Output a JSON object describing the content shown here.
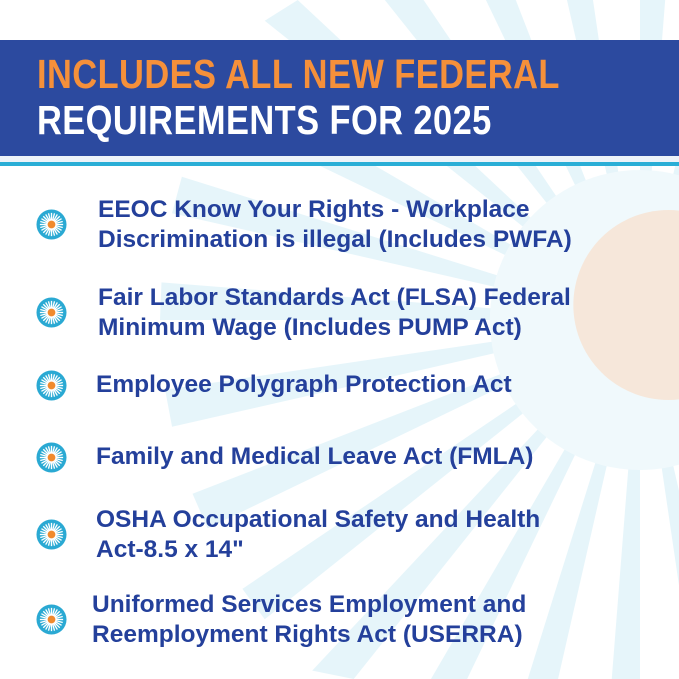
{
  "header": {
    "line1": "INCLUDES ALL NEW FEDERAL",
    "line2": "REQUIREMENTS FOR 2025"
  },
  "items": [
    {
      "line1": "EEOC Know Your Rights -  Workplace",
      "line2": "Discrimination is illegal (Includes PWFA)"
    },
    {
      "line1": "Fair Labor Standards Act (FLSA) Federal",
      "line2": "Minimum Wage (Includes PUMP Act)"
    },
    {
      "line1": "Employee Polygraph Protection Act",
      "line2": ""
    },
    {
      "line1": "Family and Medical Leave Act (FMLA)",
      "line2": ""
    },
    {
      "line1": "OSHA Occupational Safety and Health",
      "line2": "Act-8.5 x 14\""
    },
    {
      "line1": "Uniformed Services Employment  and",
      "line2": "Reemployment Rights Act (USERRA)"
    }
  ],
  "colors": {
    "banner": "#2c4a9f",
    "accent_orange": "#f5903a",
    "text_navy": "#24409b",
    "rule_cyan": "#2aaed6"
  },
  "icons": {
    "bullet": "sunburst-icon"
  }
}
